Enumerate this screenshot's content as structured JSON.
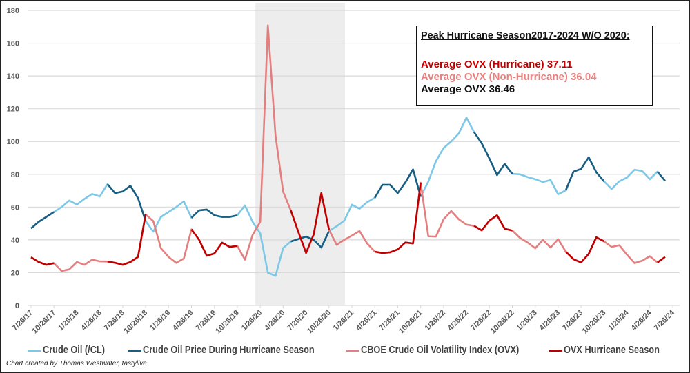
{
  "chart_data": {
    "type": "line",
    "title": "",
    "xlabel": "",
    "ylabel": "",
    "ylim": [
      0,
      180
    ],
    "yticks": [
      0,
      20,
      40,
      60,
      80,
      100,
      120,
      140,
      160,
      180
    ],
    "grid": true,
    "legend_position": "bottom",
    "x": [
      "7/26/17",
      "8/26/17",
      "9/26/17",
      "10/26/17",
      "11/26/17",
      "12/26/17",
      "1/26/18",
      "2/26/18",
      "3/26/18",
      "4/26/18",
      "5/26/18",
      "6/26/18",
      "7/26/18",
      "8/26/18",
      "9/26/18",
      "10/26/18",
      "11/26/18",
      "12/26/18",
      "1/26/19",
      "2/26/19",
      "3/26/19",
      "4/26/19",
      "5/26/19",
      "6/26/19",
      "7/26/19",
      "8/26/19",
      "9/26/19",
      "10/26/19",
      "11/26/19",
      "12/26/19",
      "1/26/20",
      "2/26/20",
      "3/26/20",
      "4/26/20",
      "5/26/20",
      "6/26/20",
      "7/26/20",
      "8/26/20",
      "9/26/20",
      "10/26/20",
      "11/26/20",
      "12/26/20",
      "1/26/21",
      "2/26/21",
      "3/26/21",
      "4/26/21",
      "5/26/21",
      "6/26/21",
      "7/26/21",
      "8/26/21",
      "9/26/21",
      "10/26/21",
      "11/26/21",
      "12/26/21",
      "1/26/22",
      "2/26/22",
      "3/26/22",
      "4/26/22",
      "5/26/22",
      "6/26/22",
      "7/26/22",
      "8/26/22",
      "9/26/22",
      "10/26/22",
      "11/26/22",
      "12/26/22",
      "1/26/23",
      "2/26/23",
      "3/26/23",
      "4/26/23",
      "5/26/23",
      "6/26/23",
      "7/26/23",
      "8/26/23",
      "9/26/23",
      "10/26/23",
      "11/26/23",
      "12/26/23",
      "1/26/24",
      "2/26/24",
      "3/26/24",
      "4/26/24",
      "5/26/24",
      "6/26/24"
    ],
    "xticks": [
      "7/26/17",
      "10/26/17",
      "1/26/18",
      "4/26/18",
      "7/26/18",
      "10/26/18",
      "1/26/19",
      "4/26/19",
      "7/26/19",
      "10/26/19",
      "1/26/20",
      "4/26/20",
      "7/26/20",
      "10/26/20",
      "1/26/21",
      "4/26/21",
      "7/26/21",
      "10/26/21",
      "1/26/22",
      "4/26/22",
      "7/26/22",
      "10/26/22",
      "1/26/23",
      "4/26/23",
      "7/26/23",
      "10/26/23",
      "1/26/24",
      "4/26/24",
      "7/26/24"
    ],
    "shaded_region": [
      "1/7/20",
      "12/29/20"
    ],
    "series": [
      {
        "name": "Crude Oil (/CL)",
        "color": "#7cc8e6",
        "values": [
          47,
          51,
          54,
          57,
          60,
          64,
          61.5,
          65,
          68,
          66.5,
          74,
          68.5,
          69.5,
          73,
          65.5,
          51.5,
          45,
          54,
          57,
          60,
          63.5,
          53.5,
          58,
          58.5,
          55,
          54,
          54,
          55,
          61,
          51,
          44,
          20,
          18,
          35,
          39,
          40.5,
          42,
          40,
          35.3,
          45.4,
          48.3,
          51.7,
          61.5,
          59,
          63,
          65.7,
          73.6,
          73.6,
          68.5,
          75,
          83,
          66.4,
          75.5,
          88,
          96,
          100,
          105,
          114.5,
          105.7,
          98.8,
          89.6,
          79.5,
          86.3,
          80.3,
          80,
          78.3,
          77,
          75.3,
          76.5,
          67.8,
          70.2,
          81.6,
          83.3,
          90.4,
          81.2,
          75.7,
          71,
          75.7,
          78,
          82.8,
          82,
          77,
          81.6,
          76
        ]
      },
      {
        "name": "Crude Oil Price During Hurricane Season",
        "color": "#1a5e82",
        "values": [
          47,
          51,
          54,
          57,
          null,
          null,
          null,
          null,
          null,
          null,
          74,
          68.5,
          69.5,
          73,
          65.5,
          51.5,
          null,
          null,
          null,
          null,
          null,
          53.5,
          58,
          58.5,
          55,
          54,
          54,
          55,
          null,
          null,
          null,
          null,
          null,
          null,
          39,
          40.5,
          42,
          40,
          35.3,
          45.4,
          null,
          null,
          null,
          null,
          null,
          65.7,
          73.6,
          73.6,
          68.5,
          75,
          83,
          66.4,
          null,
          null,
          null,
          null,
          null,
          null,
          105.7,
          98.8,
          89.6,
          79.5,
          86.3,
          80.3,
          null,
          null,
          null,
          null,
          null,
          null,
          70.2,
          81.6,
          83.3,
          90.4,
          81.2,
          75.7,
          null,
          null,
          null,
          null,
          null,
          null,
          81.6,
          76
        ]
      },
      {
        "name": "CBOE Crude Oil Volatility Index (OVX)",
        "color": "#e47f7f",
        "values": [
          29.4,
          26.5,
          24.8,
          25.8,
          21,
          22,
          26.5,
          24.8,
          27.9,
          26.9,
          26.8,
          26,
          24.8,
          26.5,
          29.6,
          55.5,
          51.4,
          34.9,
          29.6,
          26,
          28.6,
          46.4,
          40,
          30.3,
          31.7,
          38.3,
          35.7,
          36.3,
          27.9,
          43,
          51,
          170.9,
          103.6,
          69.4,
          58,
          44.7,
          32,
          43.3,
          68.5,
          46.2,
          37,
          40,
          42.6,
          45.4,
          37.8,
          32.8,
          32,
          32.4,
          34.2,
          38.4,
          37.8,
          74.9,
          42.2,
          42,
          52.5,
          57.6,
          52.5,
          49.3,
          48.5,
          45.8,
          51.7,
          55,
          46.8,
          45.7,
          41.2,
          38.4,
          34.9,
          40,
          35.3,
          40.4,
          32.8,
          28.2,
          26.2,
          31.5,
          41.6,
          39.1,
          35.7,
          36.7,
          31,
          25.8,
          27.3,
          30,
          26.2,
          29.6
        ]
      },
      {
        "name": "OVX Hurricane Season",
        "color": "#c00000",
        "values": [
          29.4,
          26.5,
          24.8,
          25.8,
          null,
          null,
          null,
          null,
          null,
          null,
          26.8,
          26,
          24.8,
          26.5,
          29.6,
          55.5,
          null,
          null,
          null,
          null,
          null,
          46.4,
          40,
          30.3,
          31.7,
          38.3,
          35.7,
          36.3,
          null,
          null,
          null,
          null,
          null,
          null,
          58,
          44.7,
          32,
          43.3,
          68.5,
          46.2,
          null,
          null,
          null,
          null,
          null,
          32.8,
          32,
          32.4,
          34.2,
          38.4,
          37.8,
          74.9,
          null,
          null,
          null,
          null,
          null,
          null,
          48.5,
          45.8,
          51.7,
          55,
          46.8,
          45.7,
          null,
          null,
          null,
          null,
          null,
          null,
          32.8,
          28.2,
          26.2,
          31.5,
          41.6,
          39.1,
          null,
          null,
          null,
          null,
          null,
          null,
          26.2,
          29.6
        ]
      }
    ],
    "annotation": {
      "title": "Peak Hurricane Season2017-2024 W/O 2020:",
      "lines": [
        {
          "text": "Average OVX (Hurricane) 37.11",
          "color": "#c00000"
        },
        {
          "text": "Average OVX (Non-Hurricane) 36.04",
          "color": "#e88080"
        },
        {
          "text": "Average OVX 36.46",
          "color": "#111111"
        }
      ]
    },
    "credit": "Chart created by Thomas Westwater, tastylive"
  }
}
